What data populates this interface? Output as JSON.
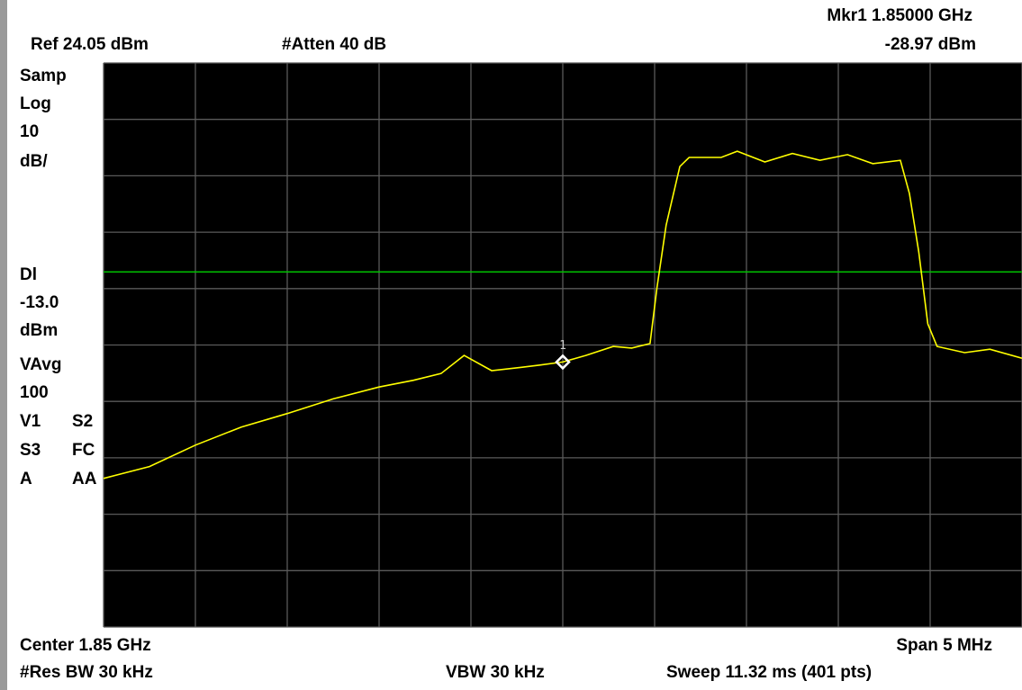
{
  "chart_data": {
    "type": "line",
    "annotations": [
      "Mkr1  1.85000 GHz",
      "Ref 24.05 dBm",
      "#Atten 40 dB",
      "-28.97 dBm",
      "Samp",
      "Log",
      "10",
      "dB/",
      "Dl",
      "-13.0",
      "dBm",
      "VAvg",
      "100",
      "V1",
      "S2",
      "S3",
      "FC",
      "A",
      "AA",
      "Center 1.85 GHz",
      "Span 5 MHz",
      "#Res BW 30 kHz",
      "VBW 30 kHz",
      "Sweep 11.32 ms (401 pts)"
    ],
    "x": [
      0,
      20,
      40,
      60,
      80,
      100,
      120,
      135,
      147,
      157,
      169,
      182,
      190,
      200,
      210,
      222,
      230,
      238,
      241,
      245,
      251,
      255,
      269,
      276,
      288,
      300,
      312,
      324,
      335,
      347,
      351,
      355,
      359,
      363,
      375,
      386,
      400
    ],
    "series": [
      {
        "color": "#ffff00",
        "values": [
          -49.6,
          -47.5,
          -43.7,
          -40.5,
          -38.1,
          -35.5,
          -33.4,
          -32.2,
          -31.0,
          -27.8,
          -30.5,
          -29.9,
          -29.5,
          -28.97,
          -27.8,
          -26.2,
          -26.5,
          -25.7,
          -15.8,
          -4.7,
          5.7,
          7.3,
          7.3,
          8.4,
          6.5,
          8.0,
          6.8,
          7.8,
          6.2,
          6.8,
          0.9,
          -9.4,
          -22.2,
          -26.2,
          -27.3,
          -26.7,
          -28.3
        ]
      }
    ],
    "xlim": [
      0,
      400
    ],
    "ylim": [
      -75.95,
      24.05
    ],
    "display_line": {
      "value": -13.0,
      "color": "#00c000"
    },
    "marker": {
      "label": "1",
      "x": 200,
      "value": -28.97
    }
  }
}
